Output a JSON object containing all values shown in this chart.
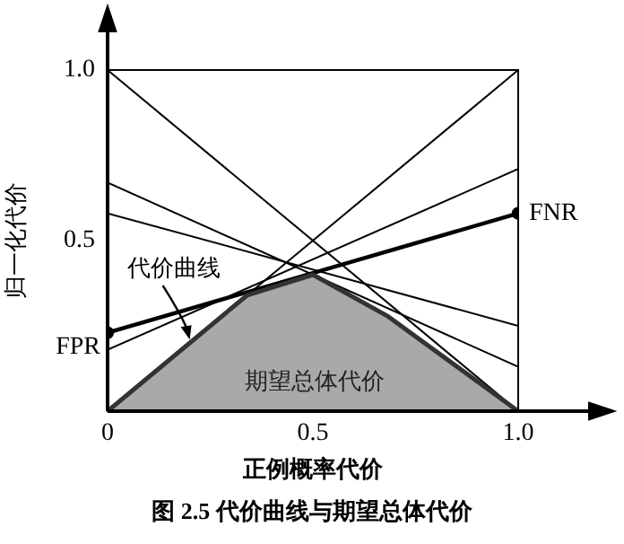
{
  "chart_data": {
    "type": "line",
    "xlabel": "正例概率代价",
    "ylabel": "归一化代价",
    "xlim": [
      0,
      1
    ],
    "ylim": [
      0,
      1
    ],
    "xticks": [
      0,
      0.5,
      {
        "value": 1,
        "label": "1.0"
      }
    ],
    "yticks": [
      0.5,
      {
        "value": 1,
        "label": "1.0"
      }
    ],
    "grid": false,
    "legend": false,
    "marker": "none",
    "series": [
      {
        "type": "area",
        "color": "#a9a9a9",
        "x": [
          0,
          0.34,
          0.5,
          0.68,
          1
        ],
        "values": [
          0,
          0.34,
          0.4,
          0.28,
          0
        ]
      },
      {
        "color": "#000000",
        "x": [
          0,
          1
        ],
        "values": [
          1,
          0
        ]
      },
      {
        "color": "#000000",
        "x": [
          0,
          1
        ],
        "values": [
          0,
          1
        ]
      },
      {
        "color": "#000000",
        "x": [
          0,
          1
        ],
        "values": [
          0.67,
          0.13
        ]
      },
      {
        "color": "#000000",
        "x": [
          0,
          1
        ],
        "values": [
          0.58,
          0.25
        ]
      },
      {
        "color": "#000000",
        "x": [
          0,
          1
        ],
        "values": [
          0.18,
          0.71
        ]
      },
      {
        "color": "#000000",
        "x": [
          0,
          1
        ],
        "values": [
          0.23,
          0.58
        ],
        "marker": "circle"
      }
    ],
    "annotations": [
      {
        "text": "FPR",
        "x": 0,
        "y": 0.23
      },
      {
        "text": "FNR",
        "x": 1,
        "y": 0.58
      },
      {
        "text": "代价曲线",
        "x": 0.2,
        "y": 0.21
      },
      "期望总体代价",
      "图 2.5  代价曲线与期望总体代价"
    ]
  }
}
